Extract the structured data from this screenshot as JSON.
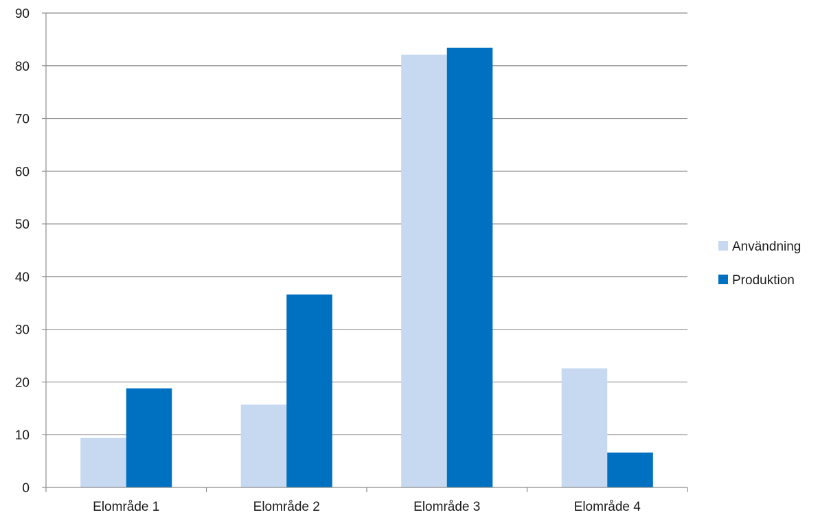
{
  "chart_data": {
    "type": "bar",
    "categories": [
      "Elområde 1",
      "Elområde 2",
      "Elområde 3",
      "Elområde 4"
    ],
    "series": [
      {
        "name": "Användning",
        "values": [
          9.4,
          15.7,
          82.1,
          22.6
        ],
        "color": "#c6d9f0"
      },
      {
        "name": "Produktion",
        "values": [
          18.8,
          36.6,
          83.4,
          6.6
        ],
        "color": "#0070c0"
      }
    ],
    "title": "",
    "xlabel": "",
    "ylabel": "",
    "ylim": [
      0,
      90
    ],
    "yticks": [
      "0",
      "10",
      "20",
      "30",
      "40",
      "50",
      "60",
      "70",
      "80",
      "90"
    ],
    "grid": true,
    "legend_position": "right"
  }
}
